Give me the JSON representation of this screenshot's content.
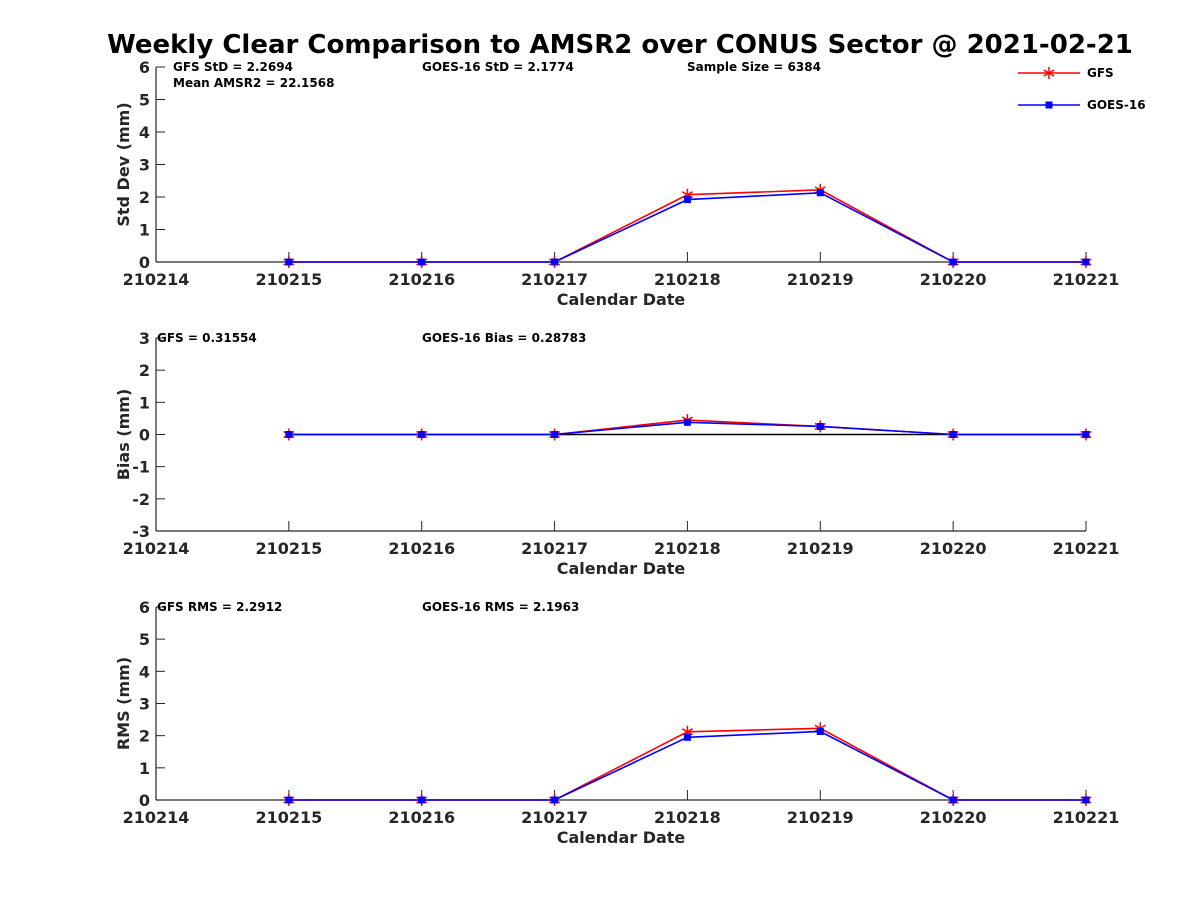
{
  "title": "Weekly Clear Comparison to AMSR2 over CONUS Sector @ 2021-02-21",
  "legend": {
    "placement": "top-right",
    "entries": [
      {
        "label": "GFS",
        "color": "#ff0000",
        "marker": "asterisk"
      },
      {
        "label": "GOES-16",
        "color": "#0000ff",
        "marker": "square"
      }
    ]
  },
  "chart_data": [
    {
      "type": "line",
      "xlabel": "Calendar Date",
      "ylabel": "Std Dev (mm)",
      "ylim": [
        0,
        6
      ],
      "yticks": [
        "0",
        "1",
        "2",
        "3",
        "4",
        "5",
        "6"
      ],
      "x": [
        "210214",
        "210215",
        "210216",
        "210217",
        "210218",
        "210219",
        "210220",
        "210221"
      ],
      "annotations": [
        "GFS StD = 2.2694",
        "Mean AMSR2 = 22.1568",
        "GOES-16 StD = 2.1774",
        "Sample Size = 6384"
      ],
      "zero_line": false,
      "series": [
        {
          "name": "GFS",
          "color": "#ff0000",
          "marker": "asterisk",
          "points": [
            [
              "210215",
              0
            ],
            [
              "210216",
              0
            ],
            [
              "210217",
              0
            ],
            [
              "210218",
              2.07
            ],
            [
              "210219",
              2.22
            ],
            [
              "210220",
              0
            ],
            [
              "210221",
              0
            ]
          ]
        },
        {
          "name": "GOES-16",
          "color": "#0000ff",
          "marker": "square",
          "points": [
            [
              "210215",
              0
            ],
            [
              "210216",
              0
            ],
            [
              "210217",
              0
            ],
            [
              "210218",
              1.92
            ],
            [
              "210219",
              2.13
            ],
            [
              "210220",
              0
            ],
            [
              "210221",
              0
            ]
          ]
        }
      ]
    },
    {
      "type": "line",
      "xlabel": "Calendar Date",
      "ylabel": "Bias (mm)",
      "ylim": [
        -3,
        3
      ],
      "yticks": [
        "-3",
        "-2",
        "-1",
        "0",
        "1",
        "2",
        "3"
      ],
      "x": [
        "210214",
        "210215",
        "210216",
        "210217",
        "210218",
        "210219",
        "210220",
        "210221"
      ],
      "annotations": [
        "GFS = 0.31554",
        "GOES-16 Bias  = 0.28783"
      ],
      "zero_line": true,
      "series": [
        {
          "name": "GFS",
          "color": "#ff0000",
          "marker": "asterisk",
          "points": [
            [
              "210215",
              0
            ],
            [
              "210216",
              0
            ],
            [
              "210217",
              0
            ],
            [
              "210218",
              0.45
            ],
            [
              "210219",
              0.25
            ],
            [
              "210220",
              0
            ],
            [
              "210221",
              0
            ]
          ]
        },
        {
          "name": "GOES-16",
          "color": "#0000ff",
          "marker": "square",
          "points": [
            [
              "210215",
              0
            ],
            [
              "210216",
              0
            ],
            [
              "210217",
              0
            ],
            [
              "210218",
              0.38
            ],
            [
              "210219",
              0.25
            ],
            [
              "210220",
              0
            ],
            [
              "210221",
              0
            ]
          ]
        }
      ]
    },
    {
      "type": "line",
      "xlabel": "Calendar Date",
      "ylabel": "RMS (mm)",
      "ylim": [
        0,
        6
      ],
      "yticks": [
        "0",
        "1",
        "2",
        "3",
        "4",
        "5",
        "6"
      ],
      "x": [
        "210214",
        "210215",
        "210216",
        "210217",
        "210218",
        "210219",
        "210220",
        "210221"
      ],
      "annotations": [
        "GFS RMS = 2.2912",
        "GOES-16 RMS = 2.1963"
      ],
      "zero_line": false,
      "series": [
        {
          "name": "GFS",
          "color": "#ff0000",
          "marker": "asterisk",
          "points": [
            [
              "210215",
              0
            ],
            [
              "210216",
              0
            ],
            [
              "210217",
              0
            ],
            [
              "210218",
              2.12
            ],
            [
              "210219",
              2.23
            ],
            [
              "210220",
              0
            ],
            [
              "210221",
              0
            ]
          ]
        },
        {
          "name": "GOES-16",
          "color": "#0000ff",
          "marker": "square",
          "points": [
            [
              "210215",
              0
            ],
            [
              "210216",
              0
            ],
            [
              "210217",
              0
            ],
            [
              "210218",
              1.95
            ],
            [
              "210219",
              2.13
            ],
            [
              "210220",
              0
            ],
            [
              "210221",
              0
            ]
          ]
        }
      ]
    }
  ]
}
